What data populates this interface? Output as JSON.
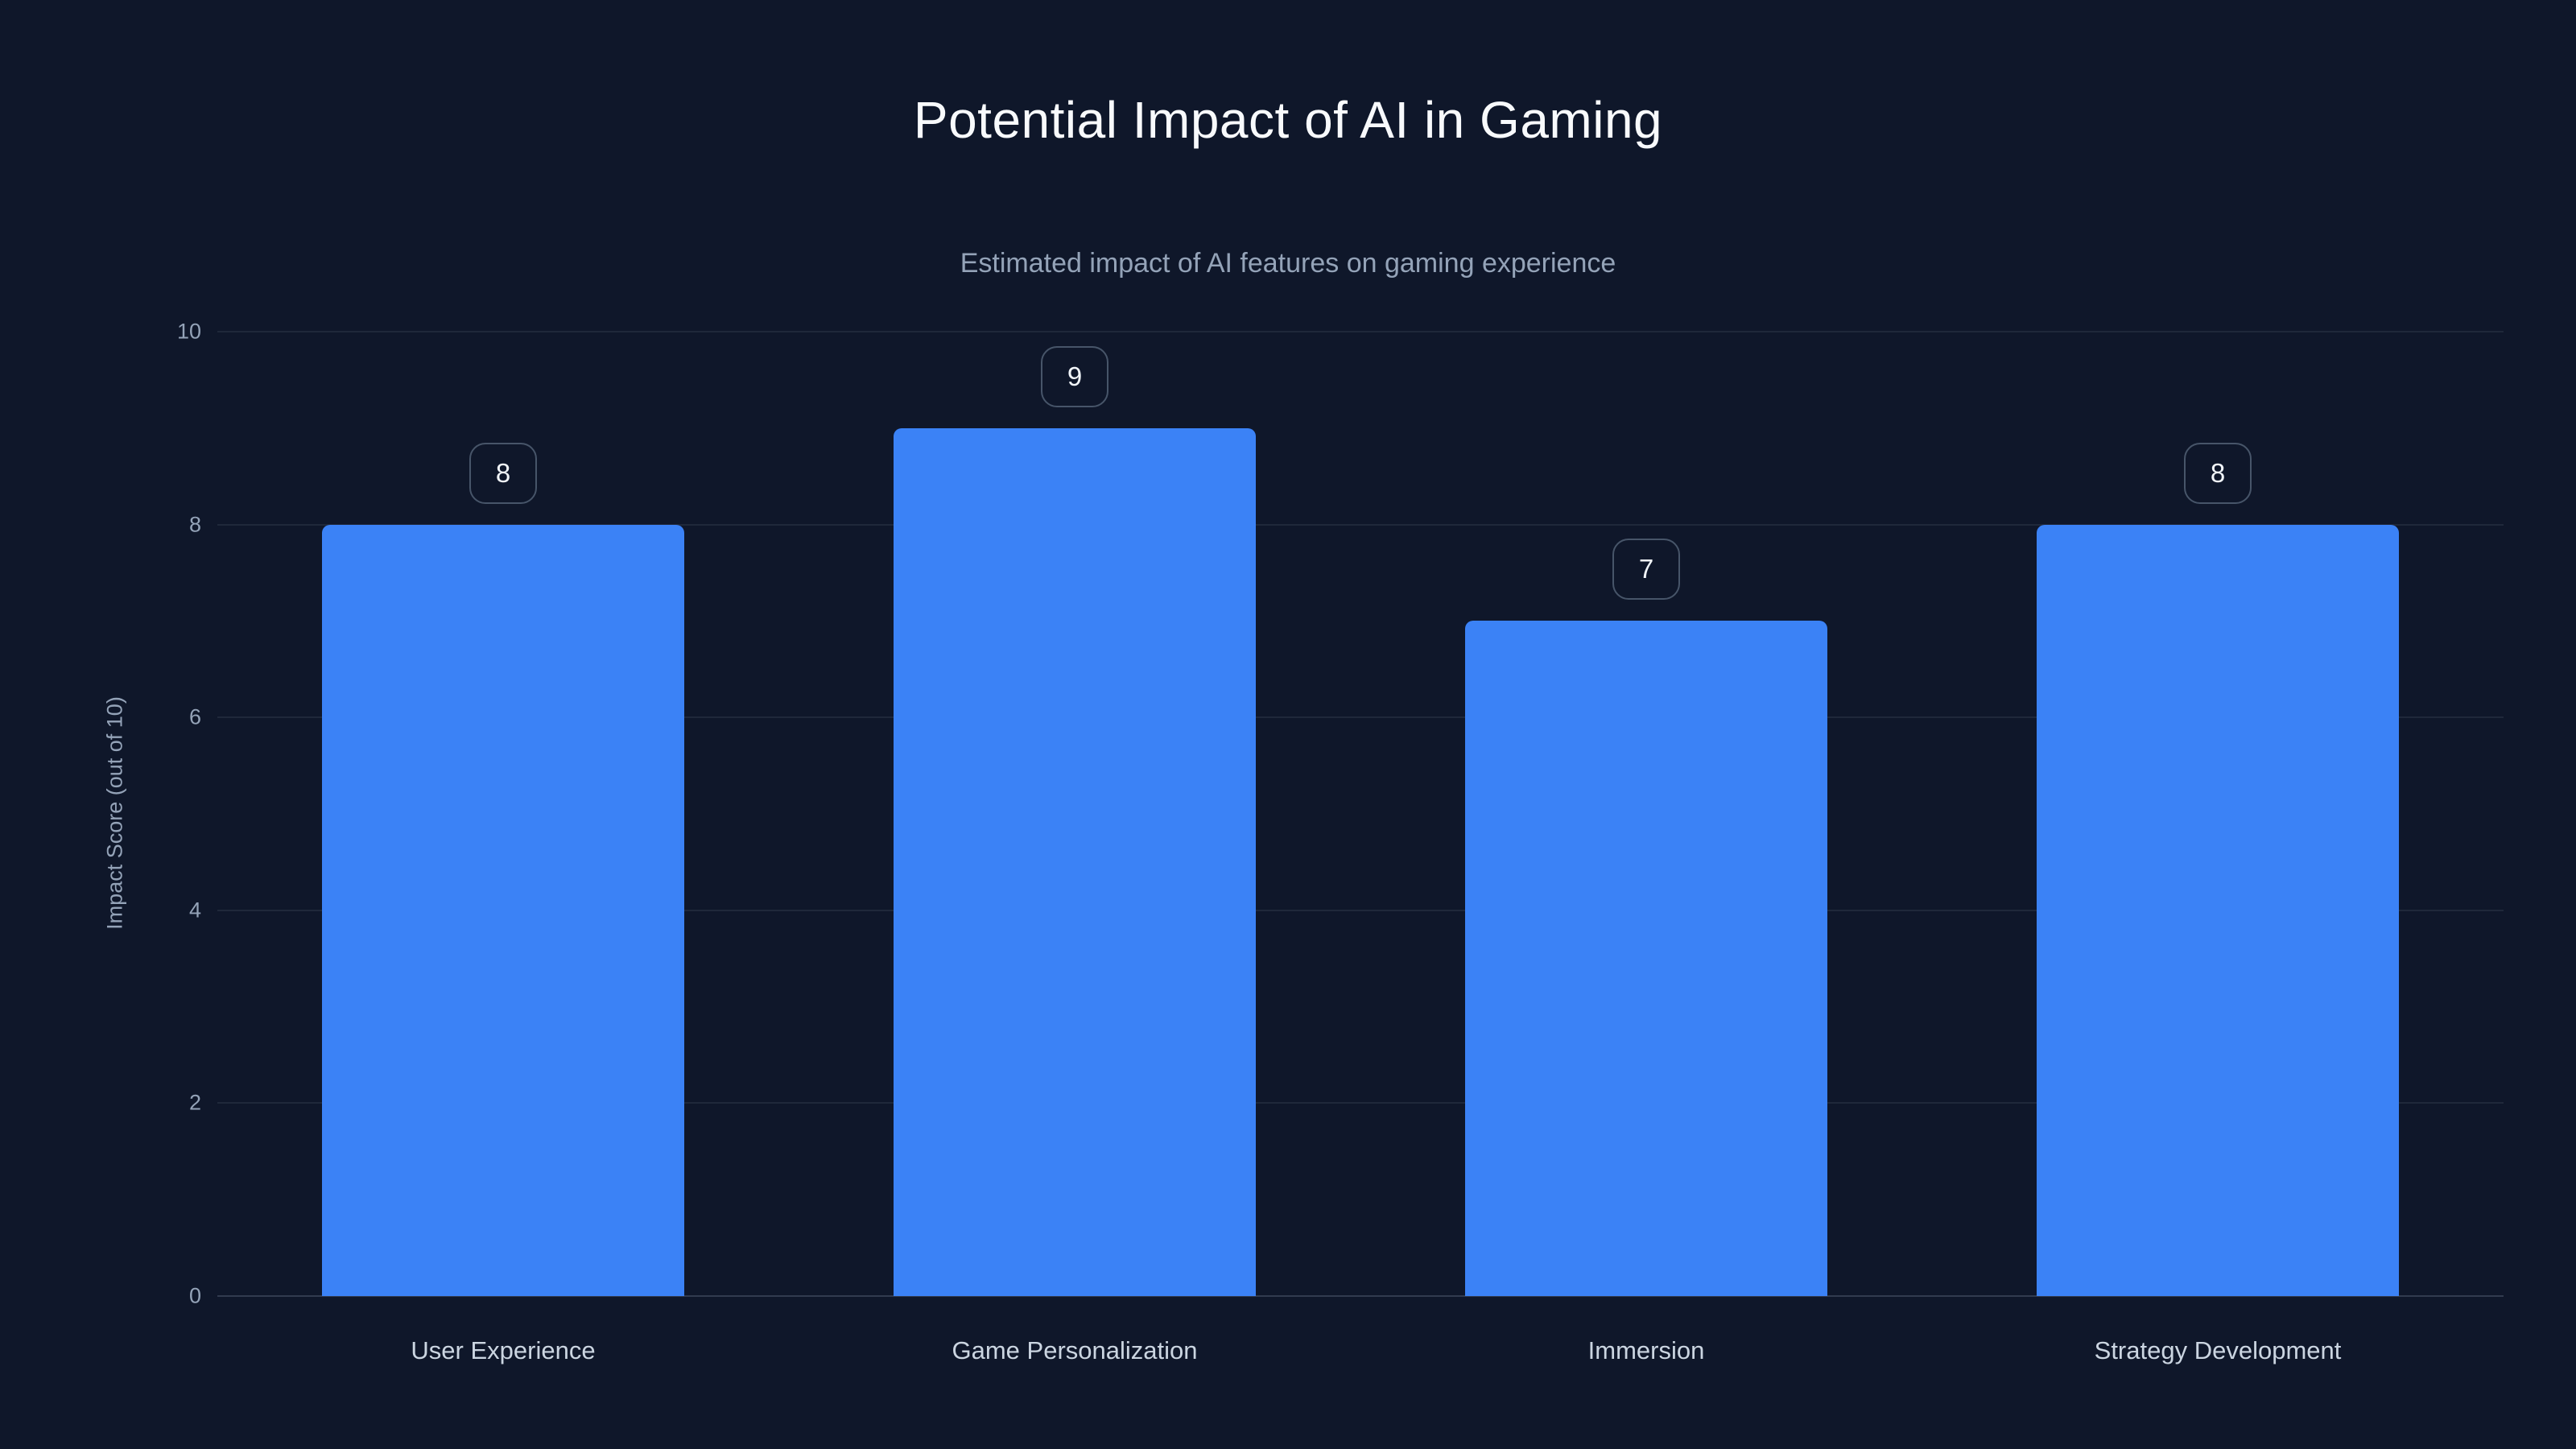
{
  "page": {
    "background_color": "#0f172a"
  },
  "chart_data": {
    "type": "bar",
    "title": "Potential Impact of AI in Gaming",
    "subtitle": "Estimated impact of AI features on gaming experience",
    "categories": [
      "User Experience",
      "Game Personalization",
      "Immersion",
      "Strategy Development"
    ],
    "values": [
      8,
      9,
      7,
      8
    ],
    "value_labels": [
      "8",
      "9",
      "7",
      "8"
    ],
    "xlabel": "",
    "ylabel": "Impact Score (out of 10)",
    "ylim": [
      0,
      10
    ],
    "yticks": [
      0,
      2,
      4,
      6,
      8,
      10
    ],
    "grid": true,
    "legend": "none",
    "bar_color": "#3b82f6",
    "badge_border_color": "#475569",
    "badge_text_color": "#f1f5f9",
    "title_color": "#f8fafc",
    "subtitle_color": "#94a3b8",
    "tick_color": "#94a3b8",
    "category_color": "#cbd5e1"
  }
}
